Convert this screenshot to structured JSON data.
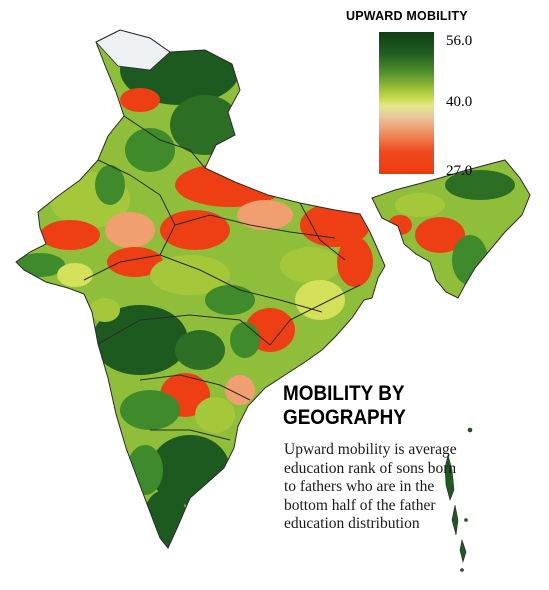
{
  "legend": {
    "title": "UPWARD MOBILITY",
    "max_label": "56.0",
    "mid_label": "40.0",
    "min_label": "27.0",
    "scale": {
      "max": 56.0,
      "mid": 40.0,
      "min": 27.0
    },
    "colors": {
      "high": "#0f3d14",
      "mid": "#e3e78a",
      "low": "#ee3a10"
    }
  },
  "headline": "MOBILITY BY GEOGRAPHY",
  "description": "Upward mobility is average education rank of sons born to fathers who are in the bottom half of the father education distribution",
  "map": {
    "region": "India",
    "colors": {
      "dark_green": "#1d5a1f",
      "green": "#3f8a2a",
      "light_green": "#a5c83b",
      "yellow_green": "#d4e05a",
      "salmon": "#f0a070",
      "red": "#ee3f14",
      "grey_region": "#eef2f4",
      "border": "#2a2a2a"
    }
  }
}
